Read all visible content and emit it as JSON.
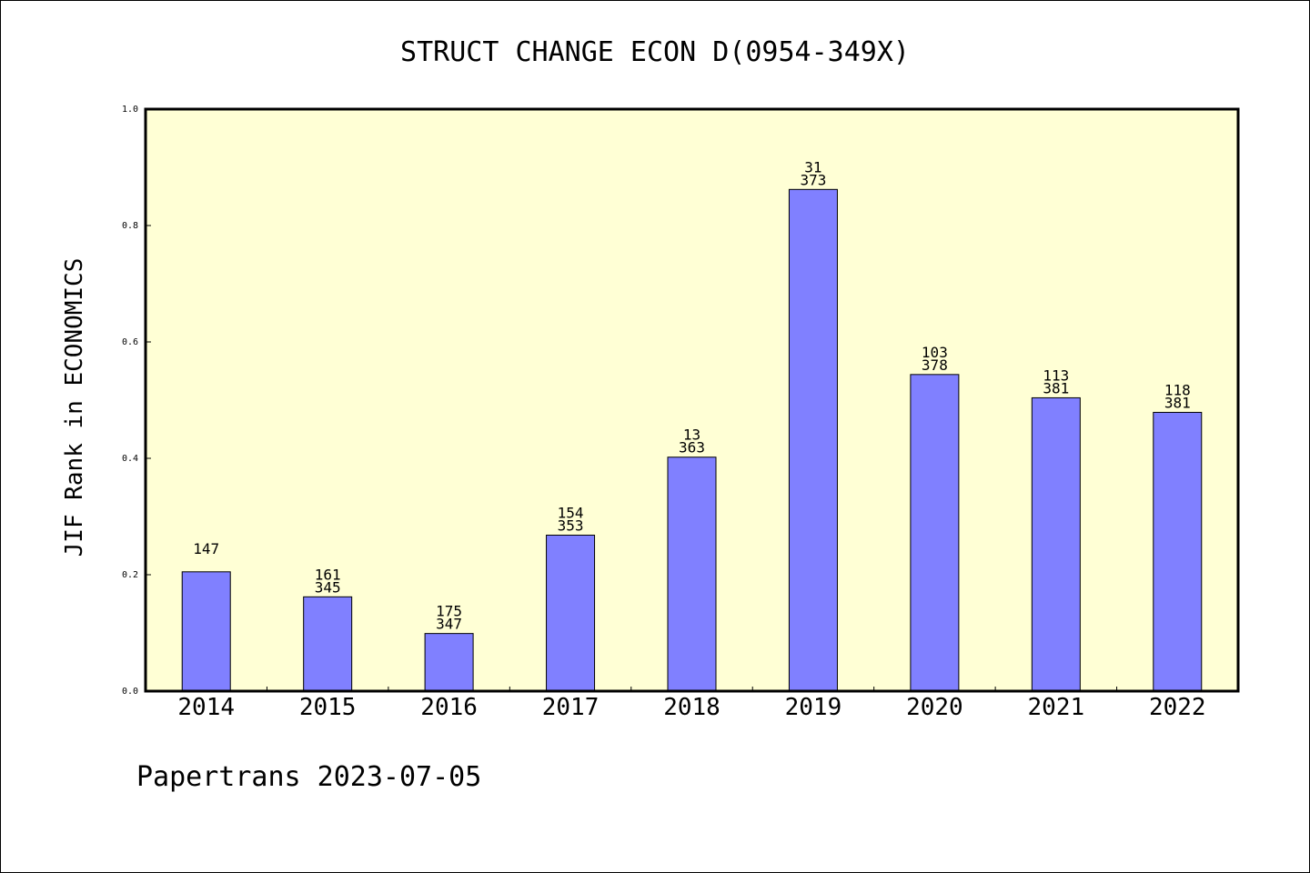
{
  "chart_data": {
    "type": "bar",
    "title": "STRUCT CHANGE ECON D(0954-349X)",
    "xlabel": "",
    "ylabel": "JIF Rank in ECONOMICS",
    "ylim": [
      0,
      1
    ],
    "yticks": [
      "0.0",
      "0.2",
      "0.4",
      "0.6",
      "0.8",
      "1.0"
    ],
    "grid": false,
    "categories": [
      "2014",
      "2015",
      "2016",
      "2017",
      "2018",
      "2019",
      "2020",
      "2021",
      "2022"
    ],
    "values": [
      0.205,
      0.162,
      0.099,
      0.268,
      0.402,
      0.862,
      0.544,
      0.504,
      0.479
    ],
    "labels_top": [
      "147",
      "161",
      "175",
      "154",
      "13",
      "31",
      "103",
      "113",
      "118"
    ],
    "labels_bottom": [
      "",
      "345",
      "347",
      "353",
      "363",
      "373",
      "378",
      "381",
      "381"
    ]
  },
  "footer": "Papertrans 2023-07-05",
  "colors": {
    "plot_background": "#ffffd5",
    "bar_fill": "#8080ff",
    "axis": "#000000"
  }
}
